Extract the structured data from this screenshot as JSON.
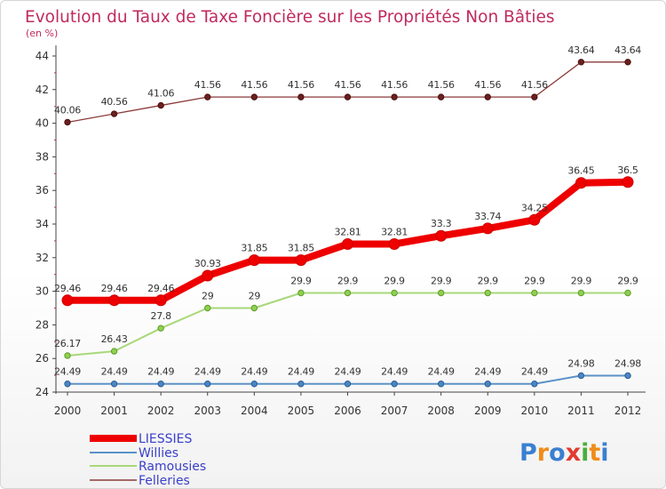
{
  "chart_data": {
    "type": "line",
    "title": "Evolution du Taux de Taxe Foncière sur les Propriétés Non Bâties",
    "subtitle": "(en %)",
    "x": [
      "2000",
      "2001",
      "2002",
      "2003",
      "2004",
      "2005",
      "2006",
      "2007",
      "2008",
      "2009",
      "2010",
      "2011",
      "2012"
    ],
    "ylim": [
      24,
      44
    ],
    "yticks": [
      "24",
      "26",
      "28",
      "30",
      "32",
      "34",
      "36",
      "38",
      "40",
      "42",
      "44"
    ],
    "series": [
      {
        "name": "LIESSIES",
        "color": "#ee0000",
        "labels": [
          "29.46",
          "29.46",
          "29.46",
          "30.93",
          "31.85",
          "31.85",
          "32.81",
          "32.81",
          "33.3",
          "33.74",
          "34.25",
          "36.45",
          "36.5"
        ]
      },
      {
        "name": "Willies",
        "color": "#5a92c8",
        "labels": [
          "24.49",
          "24.49",
          "24.49",
          "24.49",
          "24.49",
          "24.49",
          "24.49",
          "24.49",
          "24.49",
          "24.49",
          "24.49",
          "24.98",
          "24.98"
        ]
      },
      {
        "name": "Ramousies",
        "color": "#a8d87a",
        "labels": [
          "26.17",
          "26.43",
          "27.8",
          "29",
          "29",
          "29.9",
          "29.9",
          "29.9",
          "29.9",
          "29.9",
          "29.9",
          "29.9",
          "29.9"
        ]
      },
      {
        "name": "Felleries",
        "color": "#8b3a3a",
        "labels": [
          "40.06",
          "40.56",
          "41.06",
          "41.56",
          "41.56",
          "41.56",
          "41.56",
          "41.56",
          "41.56",
          "41.56",
          "41.56",
          "43.64",
          "43.64"
        ]
      }
    ]
  },
  "logo": {
    "text": "Proxiti"
  }
}
